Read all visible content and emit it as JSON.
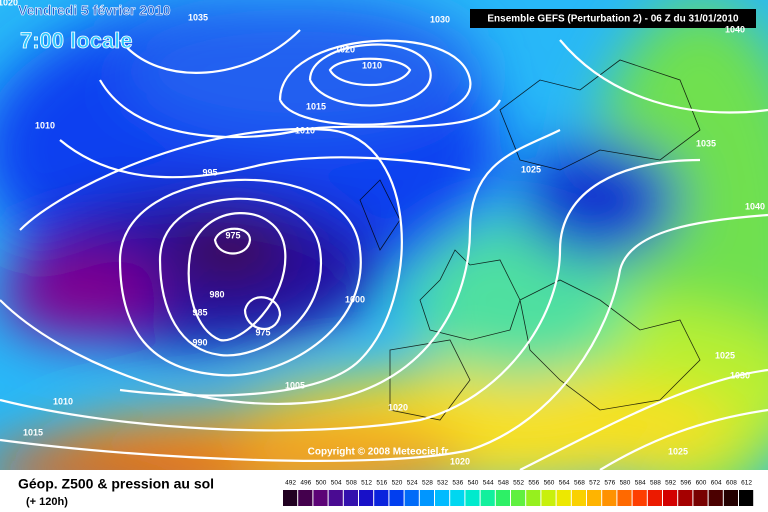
{
  "header": {
    "date": "Vendredi 5 février 2010",
    "time": "7:00 locale",
    "model": "Ensemble GEFS (Perturbation 2)  -  06 Z du 31/01/2010"
  },
  "isobar_labels": [
    "1020",
    "1035",
    "1030",
    "1040",
    "1020",
    "1010",
    "1010",
    "1015",
    "1010",
    "995",
    "1025",
    "1035",
    "1040",
    "975",
    "980",
    "985",
    "975",
    "990",
    "1000",
    "1005",
    "1010",
    "1020",
    "1015",
    "1020",
    "1025",
    "1025",
    "1030"
  ],
  "copyright": "Copyright © 2008 Meteociel.fr",
  "footer": {
    "title": "Géop. Z500 & pression au sol",
    "lead": "(+ 120h)"
  },
  "legend": {
    "values": [
      492,
      496,
      500,
      504,
      508,
      512,
      516,
      520,
      524,
      528,
      532,
      536,
      540,
      544,
      548,
      552,
      556,
      560,
      564,
      568,
      572,
      576,
      580,
      584,
      588,
      592,
      596,
      600,
      604,
      608,
      612
    ]
  }
}
